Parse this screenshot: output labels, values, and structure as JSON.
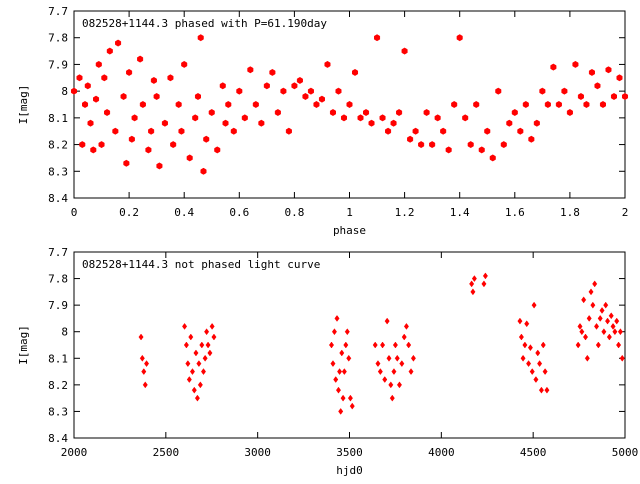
{
  "chart_data": [
    {
      "type": "scatter",
      "title": "082528+1144.3 phased with P=61.190day",
      "xlabel": "phase",
      "ylabel": "I[mag]",
      "xlim": [
        0,
        2
      ],
      "ylim": [
        8.4,
        7.7
      ],
      "y_inverted": true,
      "grid": false,
      "marker": "filled-hexagon",
      "color": "#ff0000",
      "x_ticks": [
        "0",
        "0.2",
        "0.4",
        "0.6",
        "0.8",
        "1",
        "1.2",
        "1.4",
        "1.6",
        "1.8",
        "2"
      ],
      "y_ticks": [
        "7.7",
        "7.8",
        "7.9",
        "8",
        "8.1",
        "8.2",
        "8.3",
        "8.4"
      ],
      "series": [
        {
          "x": [
            0.0,
            0.02,
            0.03,
            0.04,
            0.05,
            0.06,
            0.07,
            0.08,
            0.09,
            0.1,
            0.11,
            0.12,
            0.13,
            0.15,
            0.16,
            0.18,
            0.19,
            0.2,
            0.21,
            0.22,
            0.24,
            0.25,
            0.27,
            0.28,
            0.29,
            0.3,
            0.31,
            0.33,
            0.35,
            0.36,
            0.38,
            0.39,
            0.4,
            0.42,
            0.44,
            0.45,
            0.46,
            0.47,
            0.48,
            0.5,
            0.52,
            0.54,
            0.55,
            0.56,
            0.58,
            0.6,
            0.62,
            0.64,
            0.66,
            0.68,
            0.7,
            0.72,
            0.74,
            0.76,
            0.78,
            0.8,
            0.82,
            0.84,
            0.86,
            0.88,
            0.9,
            0.92,
            0.94,
            0.96,
            0.98,
            1.0,
            1.02,
            1.04,
            1.06,
            1.08,
            1.1,
            1.12,
            1.14,
            1.16,
            1.18,
            1.2,
            1.22,
            1.24,
            1.26,
            1.28,
            1.3,
            1.32,
            1.34,
            1.36,
            1.38,
            1.4,
            1.42,
            1.44,
            1.46,
            1.48,
            1.5,
            1.52,
            1.54,
            1.56,
            1.58,
            1.6,
            1.62,
            1.64,
            1.66,
            1.68,
            1.7,
            1.72,
            1.74,
            1.76,
            1.78,
            1.8,
            1.82,
            1.84,
            1.86,
            1.88,
            1.9,
            1.92,
            1.94,
            1.96,
            1.98,
            2.0
          ],
          "y": [
            8.0,
            7.95,
            8.2,
            8.05,
            7.98,
            8.12,
            8.22,
            8.03,
            7.9,
            8.2,
            7.95,
            8.08,
            7.85,
            8.15,
            7.82,
            8.02,
            8.27,
            7.93,
            8.18,
            8.1,
            7.88,
            8.05,
            8.22,
            8.15,
            7.96,
            8.02,
            8.28,
            8.12,
            7.95,
            8.2,
            8.05,
            8.15,
            7.9,
            8.25,
            8.1,
            8.02,
            7.8,
            8.3,
            8.18,
            8.08,
            8.22,
            7.98,
            8.12,
            8.05,
            8.15,
            8.0,
            8.1,
            7.92,
            8.05,
            8.12,
            7.98,
            7.93,
            8.08,
            8.0,
            8.15,
            7.98,
            7.96,
            8.02,
            8.0,
            8.05,
            8.03,
            7.9,
            8.08,
            8.0,
            8.1,
            8.05,
            7.93,
            8.1,
            8.08,
            8.12,
            7.8,
            8.1,
            8.15,
            8.12,
            8.08,
            7.85,
            8.18,
            8.15,
            8.2,
            8.08,
            8.2,
            8.1,
            8.15,
            8.22,
            8.05,
            7.8,
            8.1,
            8.2,
            8.05,
            8.22,
            8.15,
            8.25,
            8.0,
            8.2,
            8.12,
            8.08,
            8.15,
            8.05,
            8.18,
            8.12,
            8.0,
            8.05,
            7.91,
            8.05,
            8.0,
            8.08,
            7.9,
            8.02,
            8.05,
            7.93,
            7.98,
            8.05,
            7.92,
            8.02,
            7.95,
            8.02
          ]
        }
      ]
    },
    {
      "type": "scatter",
      "title": "082528+1144.3 not phased light curve",
      "xlabel": "hjd0",
      "ylabel": "I[mag]",
      "xlim": [
        2000,
        5000
      ],
      "ylim": [
        8.4,
        7.7
      ],
      "y_inverted": true,
      "grid": false,
      "marker": "small-diamond",
      "color": "#ff0000",
      "x_ticks": [
        "2000",
        "2500",
        "3000",
        "3500",
        "4000",
        "4500",
        "5000"
      ],
      "y_ticks": [
        "7.7",
        "7.8",
        "7.9",
        "8",
        "8.1",
        "8.2",
        "8.3",
        "8.4"
      ],
      "series": [
        {
          "x": [
            2365,
            2372,
            2380,
            2388,
            2395,
            2602,
            2612,
            2620,
            2628,
            2636,
            2645,
            2655,
            2664,
            2672,
            2680,
            2688,
            2696,
            2705,
            2714,
            2722,
            2730,
            2740,
            2752,
            2762,
            3402,
            3410,
            3418,
            3425,
            3432,
            3440,
            3446,
            3452,
            3458,
            3465,
            3472,
            3480,
            3488,
            3496,
            3505,
            3515,
            3640,
            3655,
            3668,
            3680,
            3692,
            3705,
            3715,
            3725,
            3733,
            3742,
            3750,
            3760,
            3772,
            3785,
            3798,
            3810,
            3822,
            3835,
            3848,
            4165,
            4172,
            4180,
            4232,
            4240,
            4428,
            4436,
            4445,
            4455,
            4465,
            4475,
            4485,
            4495,
            4505,
            4515,
            4525,
            4535,
            4545,
            4555,
            4565,
            4575,
            4745,
            4755,
            4765,
            4775,
            4785,
            4795,
            4805,
            4815,
            4825,
            4835,
            4845,
            4855,
            4865,
            4875,
            4885,
            4895,
            4905,
            4915,
            4925,
            4935,
            4945,
            4955,
            4965,
            4975,
            4985
          ],
          "y": [
            8.02,
            8.1,
            8.15,
            8.2,
            8.12,
            7.98,
            8.05,
            8.12,
            8.18,
            8.02,
            8.15,
            8.22,
            8.08,
            8.25,
            8.12,
            8.2,
            8.05,
            8.15,
            8.1,
            8.0,
            8.05,
            8.08,
            7.98,
            8.02,
            8.05,
            8.12,
            8.0,
            8.18,
            7.95,
            8.22,
            8.15,
            8.3,
            8.08,
            8.25,
            8.15,
            8.05,
            8.0,
            8.1,
            8.25,
            8.28,
            8.05,
            8.12,
            8.15,
            8.05,
            8.18,
            7.96,
            8.1,
            8.2,
            8.25,
            8.15,
            8.05,
            8.1,
            8.2,
            8.12,
            8.02,
            7.98,
            8.05,
            8.15,
            8.1,
            7.82,
            7.85,
            7.8,
            7.82,
            7.79,
            7.96,
            8.02,
            8.1,
            8.05,
            7.97,
            8.12,
            8.06,
            8.15,
            7.9,
            8.18,
            8.08,
            8.12,
            8.22,
            8.05,
            8.15,
            8.22,
            8.05,
            7.98,
            8.0,
            7.88,
            8.02,
            8.1,
            7.95,
            7.85,
            7.9,
            7.82,
            7.98,
            8.05,
            7.95,
            7.92,
            8.0,
            7.9,
            7.96,
            8.02,
            7.94,
            7.98,
            8.0,
            7.96,
            8.05,
            8.0,
            8.1
          ]
        }
      ]
    }
  ]
}
